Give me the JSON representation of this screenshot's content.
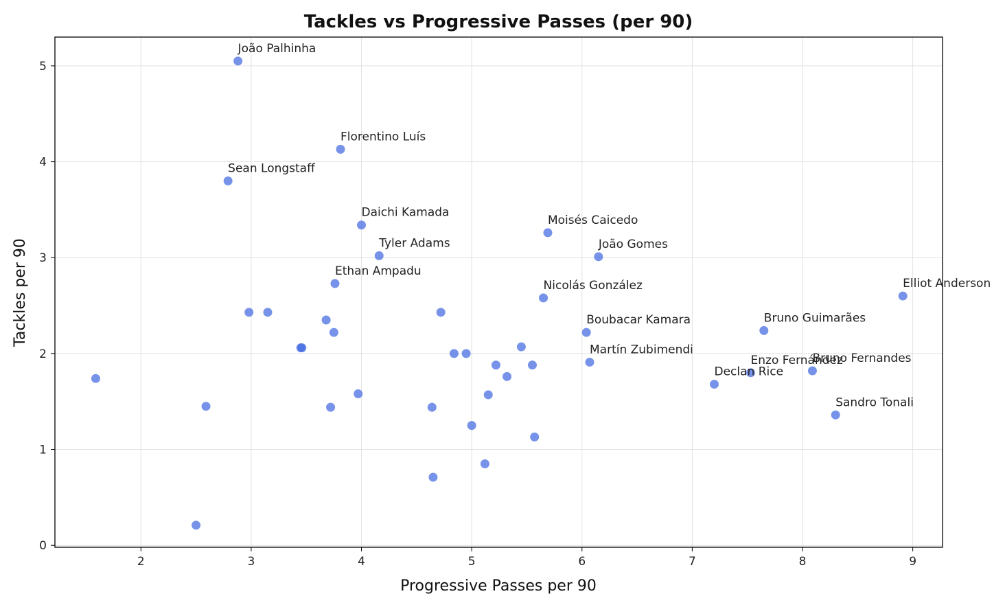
{
  "chart_data": {
    "type": "scatter",
    "title": "Tackles vs Progressive Passes (per 90)",
    "xlabel": "Progressive Passes per 90",
    "ylabel": "Tackles per 90",
    "xlim": [
      1.22,
      9.27
    ],
    "ylim": [
      -0.02,
      5.3
    ],
    "xticks": [
      2,
      3,
      4,
      5,
      6,
      7,
      8,
      9
    ],
    "yticks": [
      0,
      1,
      2,
      3,
      4,
      5
    ],
    "grid": true,
    "labeled_points": [
      {
        "name": "João Palhinha",
        "x": 2.88,
        "y": 5.05
      },
      {
        "name": "Florentino Luís",
        "x": 3.81,
        "y": 4.13
      },
      {
        "name": "Sean Longstaff",
        "x": 2.79,
        "y": 3.8
      },
      {
        "name": "Daichi Kamada",
        "x": 4.0,
        "y": 3.34
      },
      {
        "name": "Moisés Caicedo",
        "x": 5.69,
        "y": 3.26
      },
      {
        "name": "Tyler Adams",
        "x": 4.16,
        "y": 3.02
      },
      {
        "name": "João Gomes",
        "x": 6.15,
        "y": 3.01
      },
      {
        "name": "Ethan Ampadu",
        "x": 3.76,
        "y": 2.73
      },
      {
        "name": "Nicolás González",
        "x": 5.65,
        "y": 2.58
      },
      {
        "name": "Elliot Anderson",
        "x": 8.91,
        "y": 2.6
      },
      {
        "name": "Boubacar Kamara",
        "x": 6.04,
        "y": 2.22
      },
      {
        "name": "Bruno Guimarães",
        "x": 7.65,
        "y": 2.24
      },
      {
        "name": "Martín Zubimendi",
        "x": 6.07,
        "y": 1.91
      },
      {
        "name": "Enzo Fernández",
        "x": 7.53,
        "y": 1.8
      },
      {
        "name": "Bruno Fernandes",
        "x": 8.09,
        "y": 1.82
      },
      {
        "name": "Declan Rice",
        "x": 7.2,
        "y": 1.68
      },
      {
        "name": "Sandro Tonali",
        "x": 8.3,
        "y": 1.36
      }
    ],
    "unlabeled_points": [
      {
        "x": 1.59,
        "y": 1.74
      },
      {
        "x": 2.59,
        "y": 1.45
      },
      {
        "x": 2.5,
        "y": 0.21
      },
      {
        "x": 2.98,
        "y": 2.43
      },
      {
        "x": 3.15,
        "y": 2.43
      },
      {
        "x": 3.45,
        "y": 2.06
      },
      {
        "x": 3.46,
        "y": 2.06
      },
      {
        "x": 3.68,
        "y": 2.35
      },
      {
        "x": 3.75,
        "y": 2.22
      },
      {
        "x": 3.72,
        "y": 1.44
      },
      {
        "x": 3.97,
        "y": 1.58
      },
      {
        "x": 4.64,
        "y": 1.44
      },
      {
        "x": 4.65,
        "y": 0.71
      },
      {
        "x": 4.72,
        "y": 2.43
      },
      {
        "x": 4.84,
        "y": 2.0
      },
      {
        "x": 4.95,
        "y": 2.0
      },
      {
        "x": 5.0,
        "y": 1.25
      },
      {
        "x": 5.12,
        "y": 0.85
      },
      {
        "x": 5.15,
        "y": 1.57
      },
      {
        "x": 5.22,
        "y": 1.88
      },
      {
        "x": 5.32,
        "y": 1.76
      },
      {
        "x": 5.45,
        "y": 2.07
      },
      {
        "x": 5.55,
        "y": 1.88
      },
      {
        "x": 5.57,
        "y": 1.13
      }
    ]
  }
}
